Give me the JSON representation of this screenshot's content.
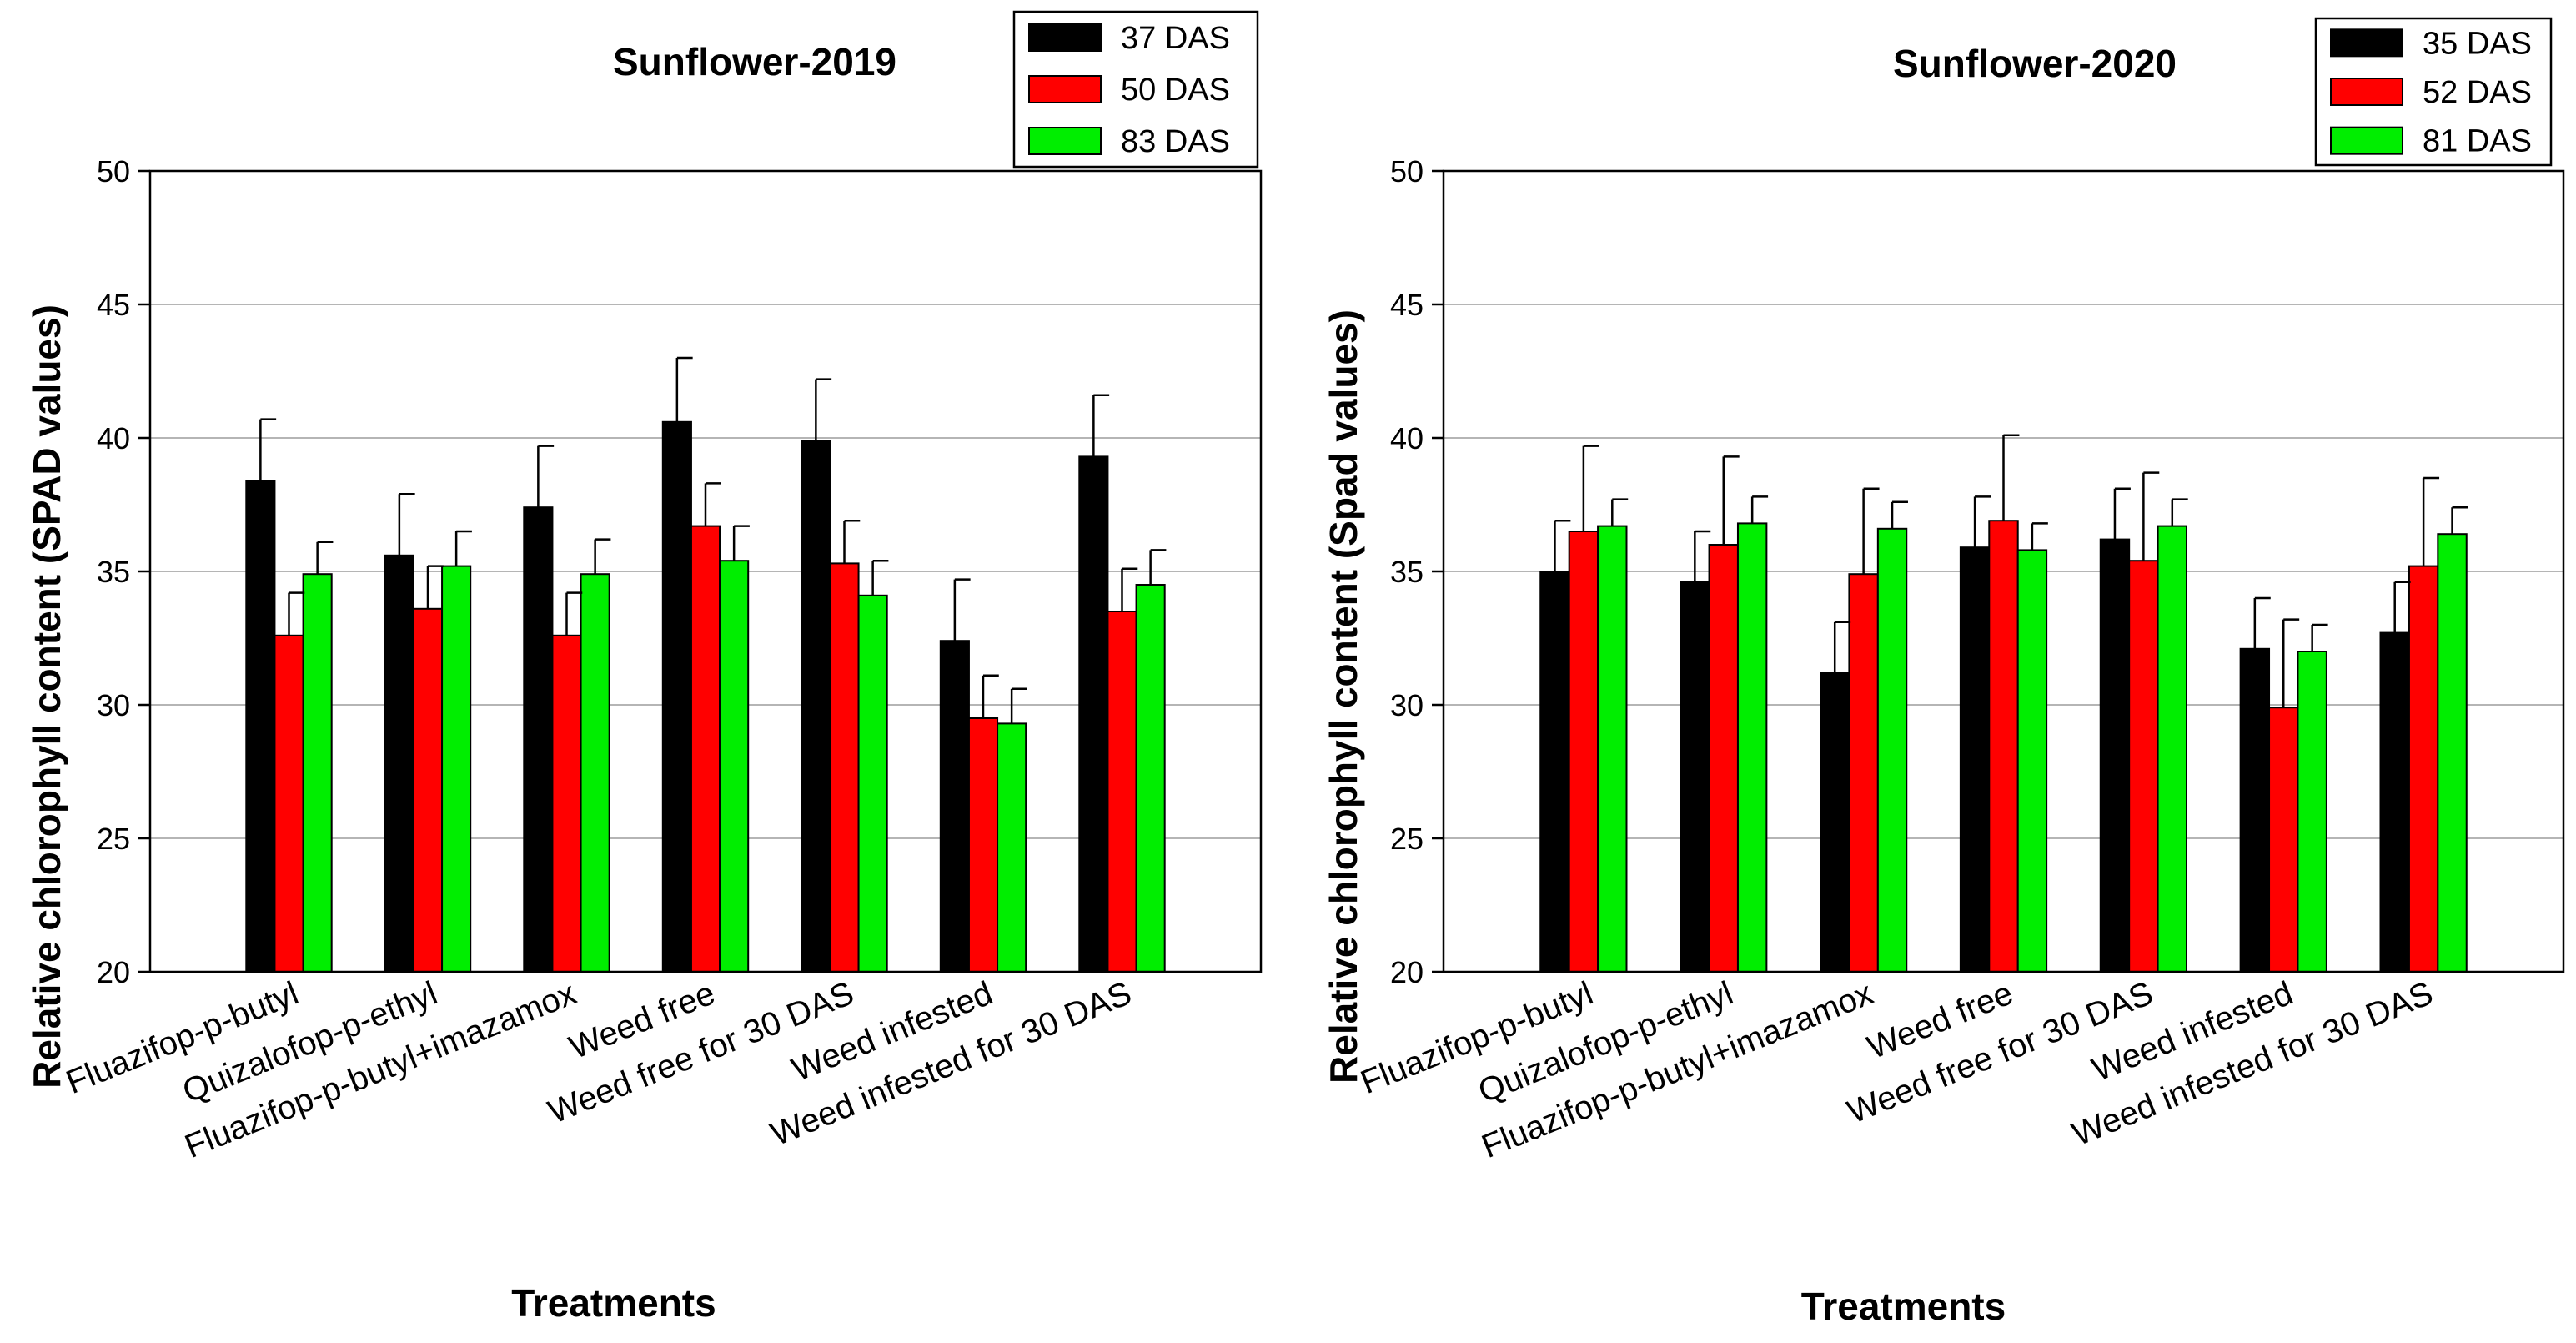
{
  "chart_data": [
    {
      "type": "bar",
      "title": "Sunflower-2019",
      "xlabel": "Treatments",
      "ylabel": "Relative chlorophyll content (SPAD values)",
      "ylim": [
        20,
        50
      ],
      "yticks": [
        20,
        25,
        30,
        35,
        40,
        45,
        50
      ],
      "grid": true,
      "legend_position": "top-right",
      "categories": [
        "Fluazifop-p-butyl",
        "Quizalofop-p-ethyl",
        "Fluazifop-p-butyl+imazamox",
        "Weed free",
        "Weed free for 30 DAS",
        "Weed infested",
        "Weed infested for 30 DAS"
      ],
      "series": [
        {
          "name": "37 DAS",
          "color": "#000000",
          "values": [
            38.4,
            35.6,
            37.4,
            40.6,
            39.9,
            32.4,
            39.3
          ],
          "errors": [
            2.3,
            2.3,
            2.3,
            2.4,
            2.3,
            2.3,
            2.3
          ]
        },
        {
          "name": "50 DAS",
          "color": "#ff0000",
          "values": [
            32.6,
            33.6,
            32.6,
            36.7,
            35.3,
            29.5,
            33.5
          ],
          "errors": [
            1.6,
            1.6,
            1.6,
            1.6,
            1.6,
            1.6,
            1.6
          ]
        },
        {
          "name": "83 DAS",
          "color": "#00ee00",
          "values": [
            34.9,
            35.2,
            34.9,
            35.4,
            34.1,
            29.3,
            34.5
          ],
          "errors": [
            1.2,
            1.3,
            1.3,
            1.3,
            1.3,
            1.3,
            1.3
          ]
        }
      ]
    },
    {
      "type": "bar",
      "title": "Sunflower-2020",
      "xlabel": "Treatments",
      "ylabel": "Relative chlorophyll content (Spad values)",
      "ylim": [
        20,
        50
      ],
      "yticks": [
        20,
        25,
        30,
        35,
        40,
        45,
        50
      ],
      "grid": true,
      "legend_position": "top-right",
      "categories": [
        "Fluazifop-p-butyl",
        "Quizalofop-p-ethyl",
        "Fluazifop-p-butyl+imazamox",
        "Weed free",
        "Weed free for 30 DAS",
        "Weed infested",
        "Weed infested for 30 DAS"
      ],
      "series": [
        {
          "name": "35 DAS",
          "color": "#000000",
          "values": [
            35.0,
            34.6,
            31.2,
            35.9,
            36.2,
            32.1,
            32.7
          ],
          "errors": [
            1.9,
            1.9,
            1.9,
            1.9,
            1.9,
            1.9,
            1.9
          ]
        },
        {
          "name": "52 DAS",
          "color": "#ff0000",
          "values": [
            36.5,
            36.0,
            34.9,
            36.9,
            35.4,
            29.9,
            35.2
          ],
          "errors": [
            3.2,
            3.3,
            3.2,
            3.2,
            3.3,
            3.3,
            3.3
          ]
        },
        {
          "name": "81 DAS",
          "color": "#00ee00",
          "values": [
            36.7,
            36.8,
            36.6,
            35.8,
            36.7,
            32.0,
            36.4
          ],
          "errors": [
            1.0,
            1.0,
            1.0,
            1.0,
            1.0,
            1.0,
            1.0
          ]
        }
      ]
    }
  ]
}
